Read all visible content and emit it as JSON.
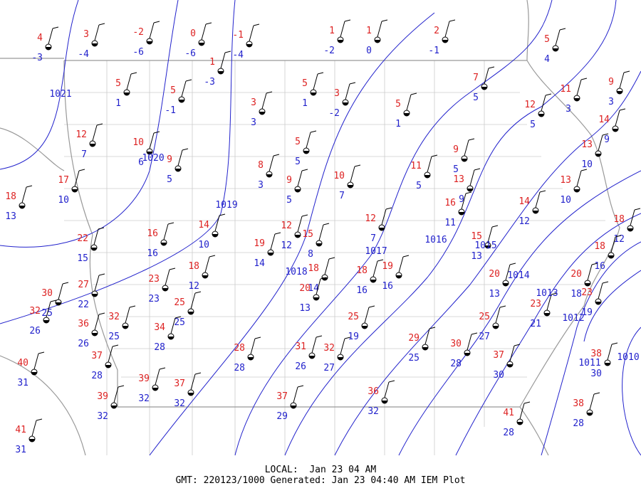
{
  "stations": [
    {
      "temp": 4,
      "dewpoint": -3
    },
    {
      "temp": 3,
      "dewpoint": -4
    },
    {
      "temp": -2,
      "dewpoint": -6
    },
    {
      "temp": 0,
      "dewpoint": -6
    },
    {
      "temp": -1,
      "dewpoint": -4
    },
    {
      "temp": 1,
      "dewpoint": -3
    },
    {
      "temp": 1,
      "dewpoint": -2
    },
    {
      "temp": 1,
      "dewpoint": 0
    },
    {
      "temp": 2,
      "dewpoint": -1
    },
    {
      "temp": 5,
      "dewpoint": 4
    },
    {
      "temp": 5,
      "dewpoint": 1
    },
    {
      "temp": 5,
      "dewpoint": -1
    },
    {
      "temp": 3,
      "dewpoint": 3
    },
    {
      "temp": 5,
      "dewpoint": 1
    },
    {
      "temp": 3,
      "dewpoint": -2
    },
    {
      "temp": 5,
      "dewpoint": 1
    },
    {
      "temp": 7,
      "dewpoint": 5
    },
    {
      "temp": 12,
      "dewpoint": 5
    },
    {
      "temp": 11,
      "dewpoint": 3
    },
    {
      "temp": 9,
      "dewpoint": 3
    },
    {
      "temp": 12,
      "dewpoint": 7
    },
    {
      "temp": 10,
      "dewpoint": 6
    },
    {
      "temp": 9,
      "dewpoint": 5
    },
    {
      "temp": 5,
      "dewpoint": 5
    },
    {
      "temp": 8,
      "dewpoint": 3
    },
    {
      "temp": 9,
      "dewpoint": 5
    },
    {
      "temp": 10,
      "dewpoint": 7
    },
    {
      "temp": 11,
      "dewpoint": 5
    },
    {
      "temp": 9,
      "dewpoint": 5
    },
    {
      "temp": 14,
      "dewpoint": 9
    },
    {
      "temp": 13,
      "dewpoint": 10
    },
    {
      "temp": 17,
      "dewpoint": 10
    },
    {
      "temp": 18,
      "dewpoint": 13
    },
    {
      "temp": 13,
      "dewpoint": 9
    },
    {
      "temp": 16,
      "dewpoint": 11
    },
    {
      "temp": 14,
      "dewpoint": 12
    },
    {
      "temp": 13,
      "dewpoint": 10
    },
    {
      "temp": 12,
      "dewpoint": 7
    },
    {
      "temp": 14,
      "dewpoint": 10
    },
    {
      "temp": 16,
      "dewpoint": 16
    },
    {
      "temp": 12,
      "dewpoint": 12
    },
    {
      "temp": 15,
      "dewpoint": 8
    },
    {
      "temp": 19,
      "dewpoint": 14
    },
    {
      "temp": 18,
      "dewpoint": 12
    },
    {
      "temp": 18,
      "dewpoint": 16
    },
    {
      "temp": 22,
      "dewpoint": 15
    },
    {
      "temp": 15,
      "dewpoint": 13
    },
    {
      "temp": 18,
      "dewpoint": 12
    },
    {
      "temp": 23,
      "dewpoint": 23
    },
    {
      "temp": 18,
      "dewpoint": 14
    },
    {
      "temp": 18,
      "dewpoint": 16
    },
    {
      "temp": 19,
      "dewpoint": 16
    },
    {
      "temp": 20,
      "dewpoint": 13
    },
    {
      "temp": 20,
      "dewpoint": 13
    },
    {
      "temp": 20,
      "dewpoint": 18
    },
    {
      "temp": 23,
      "dewpoint": 21
    },
    {
      "temp": 23,
      "dewpoint": 19
    },
    {
      "temp": 30,
      "dewpoint": 25
    },
    {
      "temp": 27,
      "dewpoint": 22
    },
    {
      "temp": 25,
      "dewpoint": 25
    },
    {
      "temp": 32,
      "dewpoint": 25
    },
    {
      "temp": 36,
      "dewpoint": 26
    },
    {
      "temp": 32,
      "dewpoint": 26
    },
    {
      "temp": 25,
      "dewpoint": 19
    },
    {
      "temp": 25,
      "dewpoint": 27
    },
    {
      "temp": 34,
      "dewpoint": 28
    },
    {
      "temp": 28,
      "dewpoint": 28
    },
    {
      "temp": 31,
      "dewpoint": 26
    },
    {
      "temp": 32,
      "dewpoint": 27
    },
    {
      "temp": 29,
      "dewpoint": 25
    },
    {
      "temp": 30,
      "dewpoint": 28
    },
    {
      "temp": 37,
      "dewpoint": 30
    },
    {
      "temp": 37,
      "dewpoint": 28
    },
    {
      "temp": 40,
      "dewpoint": 31
    },
    {
      "temp": 38,
      "dewpoint": 30
    },
    {
      "temp": 39,
      "dewpoint": 32
    },
    {
      "temp": 37,
      "dewpoint": 32
    },
    {
      "temp": 39,
      "dewpoint": 32
    },
    {
      "temp": 37,
      "dewpoint": 29
    },
    {
      "temp": 36,
      "dewpoint": 32
    },
    {
      "temp": 41,
      "dewpoint": 28
    },
    {
      "temp": 38,
      "dewpoint": 28
    },
    {
      "temp": 41,
      "dewpoint": 31
    }
  ],
  "isobars": [
    1021,
    1020,
    1019,
    1018,
    1017,
    1016,
    1015,
    1014,
    1013,
    1012,
    1011,
    1010
  ],
  "footer": {
    "local": "LOCAL:  Jan 23 04 AM",
    "gmt": "GMT: 220123/1000 Generated: Jan 23 04:40 AM IEM Plot"
  }
}
